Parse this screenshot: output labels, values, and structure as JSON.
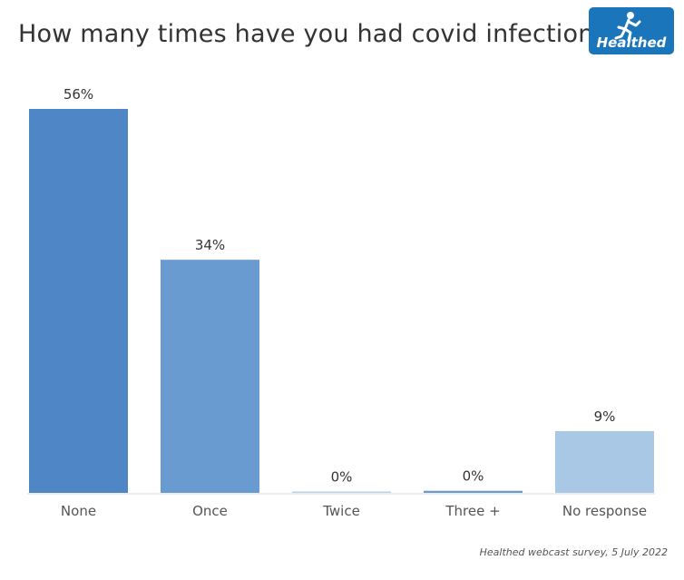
{
  "logo": {
    "text": "Healthed",
    "background": "#1b75bb"
  },
  "source": "Healthed webcast survey, 5 July 2022",
  "chart_data": {
    "type": "bar",
    "title": "How many times have you had covid infection?",
    "xlabel": "",
    "ylabel": "",
    "categories": [
      "None",
      "Once",
      "Twice",
      "Three +",
      "No response"
    ],
    "values": [
      56,
      34,
      0.2,
      0.3,
      9
    ],
    "data_labels": [
      "56%",
      "34%",
      "0%",
      "0%",
      "9%"
    ],
    "colors": [
      "#4f86c6",
      "#6a9bd0",
      "#b9d2ea",
      "#6a9bd0",
      "#a9c8e6"
    ],
    "ylim": [
      0,
      56
    ],
    "grid": false,
    "legend": "none"
  }
}
